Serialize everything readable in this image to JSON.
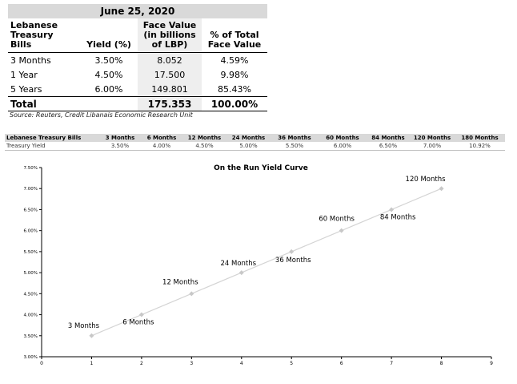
{
  "summary_table": {
    "title": "June 25, 2020",
    "headers": [
      [
        "Lebanese",
        "Treasury",
        "Bills"
      ],
      [
        "Yield (%)"
      ],
      [
        "Face Value",
        "(in billions",
        "of LBP)"
      ],
      [
        "% of Total",
        "Face Value"
      ]
    ],
    "rows": [
      [
        "3 Months",
        "3.50%",
        "8.052",
        "4.59%"
      ],
      [
        "1 Year",
        "4.50%",
        "17.500",
        "9.98%"
      ],
      [
        "5 Years",
        "6.00%",
        "149.801",
        "85.43%"
      ]
    ],
    "total": [
      "Total",
      "",
      "175.353",
      "100.00%"
    ],
    "source": "Source: Reuters, Credit Libanais Economic Research Unit"
  },
  "yield_strip": {
    "headers": [
      "Lebanese Treasury Bills",
      "3 Months",
      "6 Months",
      "12 Months",
      "24 Months",
      "36 Months",
      "60 Months",
      "84 Months",
      "120 Months",
      "180 Months"
    ],
    "row": [
      "Treasury Yield",
      "3.50%",
      "4.00%",
      "4.50%",
      "5.00%",
      "5.50%",
      "6.00%",
      "6.50%",
      "7.00%",
      "10.92%"
    ]
  },
  "chart_data": {
    "type": "line",
    "title": "On the Run Yield Curve",
    "xlabel": "",
    "ylabel": "",
    "xlim": [
      0,
      9
    ],
    "ylim": [
      3.0,
      7.5
    ],
    "x_ticks": [
      "0",
      "1",
      "2",
      "3",
      "4",
      "5",
      "6",
      "7",
      "8",
      "9"
    ],
    "y_ticks": [
      "3.00%",
      "3.50%",
      "4.00%",
      "4.50%",
      "5.00%",
      "5.50%",
      "6.00%",
      "6.50%",
      "7.00%",
      "7.50%"
    ],
    "grid": false,
    "series": [
      {
        "x": [
          1,
          2,
          3,
          4,
          5,
          6,
          7,
          8
        ],
        "values": [
          3.5,
          4.0,
          4.5,
          5.0,
          5.5,
          6.0,
          6.5,
          7.0
        ],
        "labels": [
          "3 Months",
          "6 Months",
          "12 Months",
          "24 Months",
          "36 Months",
          "60 Months",
          "84 Months",
          "120 Months"
        ]
      }
    ],
    "colors": {
      "line": "#d4d4d4",
      "marker": "#c8c8c8",
      "axis": "#000000"
    }
  }
}
